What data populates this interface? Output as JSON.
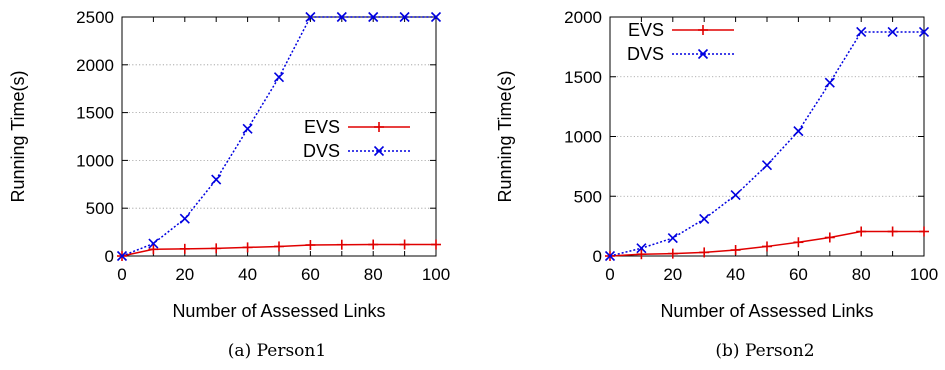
{
  "chart_data": [
    {
      "type": "line",
      "caption": "(a) Person1",
      "xlabel": "Number of Assessed Links",
      "ylabel": "Running Time(s)",
      "xlim": [
        0,
        100
      ],
      "ylim": [
        0,
        2500
      ],
      "xticks": [
        0,
        20,
        40,
        60,
        80,
        100
      ],
      "yticks": [
        0,
        500,
        1000,
        1500,
        2000,
        2500
      ],
      "grid": "horizontal-dotted",
      "legend_position": "center-right",
      "x": [
        0,
        10,
        20,
        30,
        40,
        50,
        60,
        70,
        80,
        90,
        100
      ],
      "series": [
        {
          "name": "EVS",
          "color": "#e00000",
          "dash": "solid",
          "marker": "plus",
          "values": [
            0,
            70,
            75,
            80,
            90,
            100,
            115,
            118,
            120,
            120,
            120
          ]
        },
        {
          "name": "DVS",
          "color": "#0000e0",
          "dash": "dotted",
          "marker": "x",
          "values": [
            0,
            130,
            390,
            800,
            1330,
            1870,
            2500,
            2500,
            2500,
            2500,
            2500
          ]
        }
      ]
    },
    {
      "type": "line",
      "caption": "(b) Person2",
      "xlabel": "Number of Assessed Links",
      "ylabel": "Running Time(s)",
      "xlim": [
        0,
        100
      ],
      "ylim": [
        0,
        2000
      ],
      "xticks": [
        0,
        20,
        40,
        60,
        80,
        100
      ],
      "yticks": [
        0,
        500,
        1000,
        1500,
        2000
      ],
      "grid": "horizontal-dotted",
      "legend_position": "top-left",
      "x": [
        0,
        10,
        20,
        30,
        40,
        50,
        60,
        70,
        80,
        90,
        100
      ],
      "series": [
        {
          "name": "EVS",
          "color": "#e00000",
          "dash": "solid",
          "marker": "plus",
          "values": [
            0,
            15,
            20,
            30,
            50,
            80,
            115,
            155,
            205,
            205,
            205
          ]
        },
        {
          "name": "DVS",
          "color": "#0000e0",
          "dash": "dotted",
          "marker": "x",
          "values": [
            0,
            65,
            150,
            310,
            510,
            760,
            1045,
            1450,
            1875,
            1875,
            1875
          ]
        }
      ]
    }
  ]
}
